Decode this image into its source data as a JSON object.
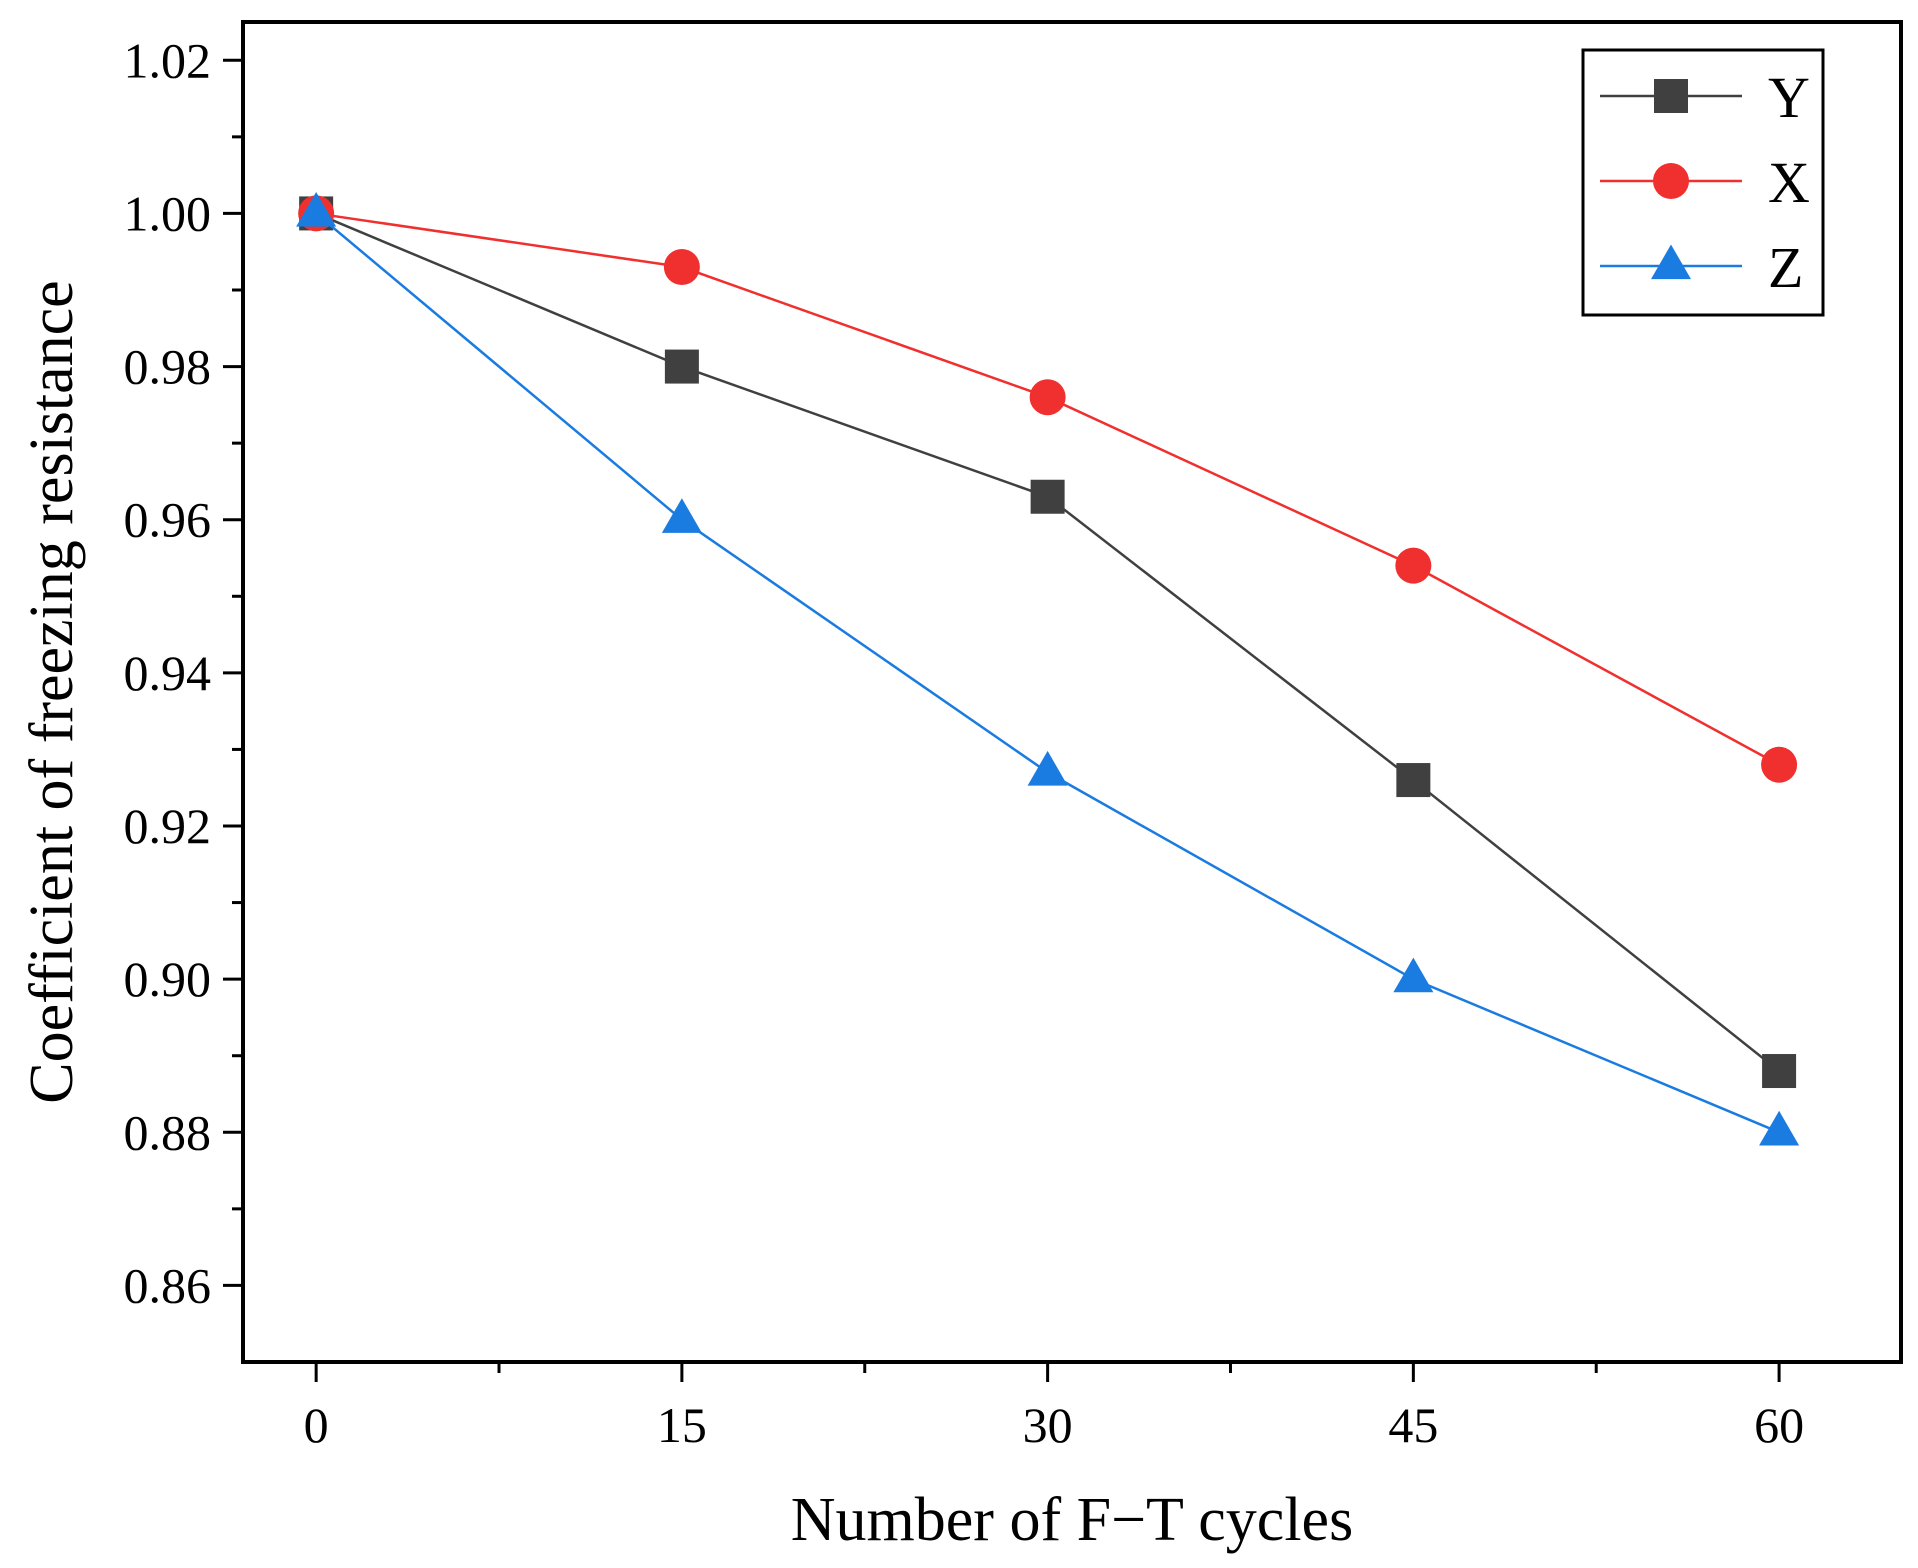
{
  "chart_data": {
    "type": "line",
    "title": "",
    "xlabel": "Number of F−T cycles",
    "ylabel": "Coefficient of freezing resistance",
    "x": [
      0,
      15,
      30,
      45,
      60
    ],
    "x_tick_labels": [
      "0",
      "15",
      "30",
      "45",
      "60"
    ],
    "y_tick_labels": [
      "0.86",
      "0.88",
      "0.90",
      "0.92",
      "0.94",
      "0.96",
      "0.98",
      "1.00",
      "1.02"
    ],
    "xlim": [
      -3,
      65
    ],
    "ylim": [
      0.85,
      1.025
    ],
    "grid": false,
    "legend_position": "top-right",
    "series": [
      {
        "name": "Y",
        "color": "#404040",
        "marker": "square",
        "values": [
          1.0,
          0.98,
          0.963,
          0.926,
          0.888
        ]
      },
      {
        "name": "X",
        "color": "#f0302e",
        "marker": "circle",
        "values": [
          1.0,
          0.993,
          0.976,
          0.954,
          0.928
        ]
      },
      {
        "name": "Z",
        "color": "#1a7be0",
        "marker": "triangle",
        "values": [
          1.0,
          0.96,
          0.927,
          0.9,
          0.88
        ]
      }
    ]
  }
}
